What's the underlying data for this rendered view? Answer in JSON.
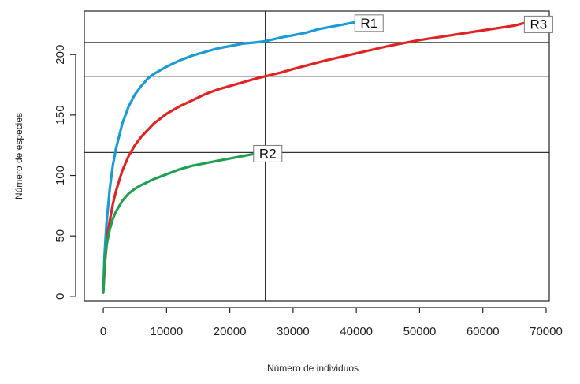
{
  "chart_data": {
    "type": "line",
    "xlabel": "Número de individuos",
    "ylabel": "Número de especies",
    "xlim": [
      -3000,
      70500
    ],
    "ylim": [
      -4,
      236
    ],
    "x_ticks": [
      0,
      10000,
      20000,
      30000,
      40000,
      50000,
      60000,
      70000
    ],
    "y_ticks": [
      0,
      50,
      100,
      150,
      200
    ],
    "reference_lines": {
      "vertical_x": [
        25600
      ],
      "horizontal_y": [
        210,
        182,
        119
      ]
    },
    "series": [
      {
        "name": "R1",
        "color": "#1a9ad6",
        "x": [
          0,
          200,
          500,
          1000,
          1500,
          2000,
          3000,
          4000,
          5000,
          6000,
          7000,
          8000,
          9000,
          10000,
          12000,
          14000,
          16000,
          18000,
          20000,
          22000,
          24000,
          25600,
          28000,
          30000,
          32000,
          34000,
          36000,
          38000,
          40000
        ],
        "y": [
          5,
          35,
          60,
          88,
          108,
          122,
          143,
          157,
          167,
          174,
          180,
          184,
          187,
          190,
          195,
          199,
          202,
          205,
          207,
          209,
          210,
          211,
          214,
          216,
          218,
          221,
          223,
          225,
          227
        ]
      },
      {
        "name": "R3",
        "color": "#e02424",
        "x": [
          0,
          300,
          700,
          1000,
          1500,
          2000,
          3000,
          4000,
          5000,
          6000,
          8000,
          10000,
          12000,
          14000,
          16000,
          18000,
          20000,
          22000,
          24000,
          25600,
          28000,
          30000,
          35000,
          40000,
          45000,
          50000,
          55000,
          60000,
          65000,
          66500
        ],
        "y": [
          5,
          30,
          52,
          62,
          76,
          87,
          104,
          116,
          125,
          132,
          143,
          151,
          157,
          162,
          167,
          171,
          174,
          177,
          180,
          182,
          185,
          188,
          195,
          201,
          207,
          212,
          216,
          220,
          224,
          226
        ]
      },
      {
        "name": "R2",
        "color": "#1fa050",
        "x": [
          0,
          200,
          500,
          1000,
          1500,
          2000,
          3000,
          4000,
          5000,
          6000,
          8000,
          10000,
          12000,
          14000,
          16000,
          18000,
          20000,
          22000,
          24000
        ],
        "y": [
          3,
          28,
          42,
          55,
          64,
          70,
          79,
          85,
          89,
          92,
          97,
          101,
          105,
          108,
          110,
          112,
          114,
          116,
          118
        ]
      }
    ],
    "labels": [
      {
        "text": "R1",
        "x": 42000,
        "y": 226,
        "series": "R1"
      },
      {
        "text": "R3",
        "x": 68800,
        "y": 225,
        "series": "R3"
      },
      {
        "text": "R2",
        "x": 26000,
        "y": 118,
        "series": "R2"
      }
    ]
  }
}
